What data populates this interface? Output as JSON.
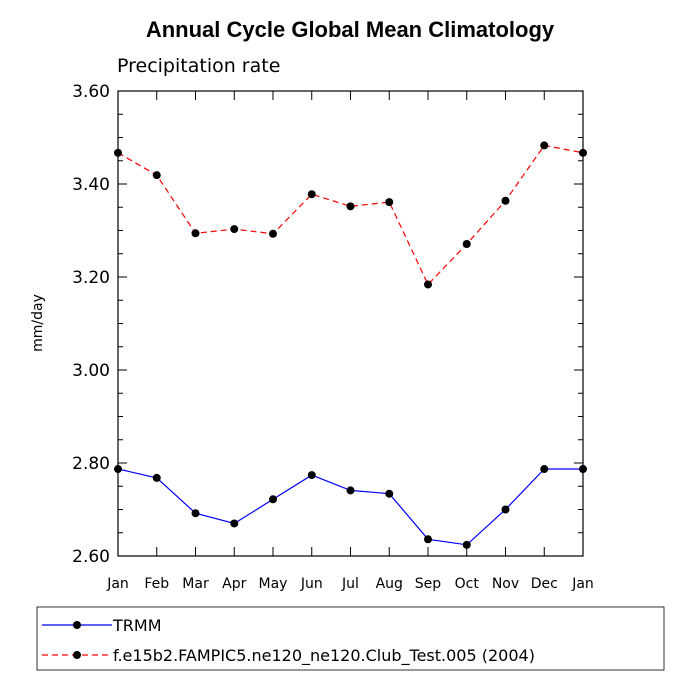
{
  "chart_data": {
    "type": "line",
    "title": "Annual Cycle Global Mean Climatology",
    "subtitle": "Precipitation rate",
    "xlabel": "",
    "ylabel": "mm/day",
    "categories": [
      "Jan",
      "Feb",
      "Mar",
      "Apr",
      "May",
      "Jun",
      "Jul",
      "Aug",
      "Sep",
      "Oct",
      "Nov",
      "Dec",
      "Jan"
    ],
    "ylim": [
      2.6,
      3.6
    ],
    "yticks": [
      "2.60",
      "2.80",
      "3.00",
      "3.20",
      "3.40",
      "3.60"
    ],
    "legend_position": "bottom",
    "series": [
      {
        "name": "TRMM",
        "color": "#0000ff",
        "dashed": false,
        "values": [
          2.787,
          2.768,
          2.692,
          2.67,
          2.722,
          2.774,
          2.741,
          2.734,
          2.636,
          2.624,
          2.7,
          2.787,
          2.787
        ]
      },
      {
        "name": "f.e15b2.FAMPIC5.ne120_ne120.Club_Test.005 (2004)",
        "color": "#ff0000",
        "dashed": true,
        "values": [
          3.467,
          3.419,
          3.294,
          3.303,
          3.293,
          3.378,
          3.352,
          3.361,
          3.184,
          3.271,
          3.364,
          3.483,
          3.467
        ]
      }
    ]
  }
}
